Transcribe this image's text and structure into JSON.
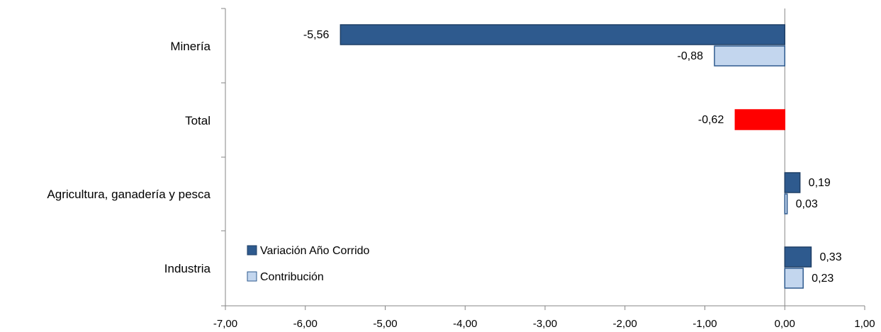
{
  "chart_data": {
    "type": "bar",
    "orientation": "horizontal",
    "categories": [
      "Minería",
      "Total",
      "Agricultura, ganadería y pesca",
      "Industria"
    ],
    "series": [
      {
        "name": "Variación Año Corrido",
        "values": [
          -5.56,
          null,
          0.19,
          0.33
        ],
        "labels": [
          "-5,56",
          "",
          "0,19",
          "0,33"
        ],
        "color": "#2E5A8E"
      },
      {
        "name": "Contribución",
        "values": [
          -0.88,
          null,
          0.03,
          0.23
        ],
        "labels": [
          "-0,88",
          "",
          "0,03",
          "0,23"
        ],
        "color": "#C3D6EE"
      }
    ],
    "total": {
      "value": -0.62,
      "label": "-0,62",
      "color": "#FF0000"
    },
    "xlim": [
      -7,
      1
    ],
    "xticks": [
      -7,
      -6,
      -5,
      -4,
      -3,
      -2,
      -1,
      0,
      1
    ],
    "xtick_labels": [
      "-7,00",
      "-6,00",
      "-5,00",
      "-4,00",
      "-3,00",
      "-2,00",
      "-1,00",
      "0,00",
      "1,00"
    ],
    "grid": false,
    "legend_position": "bottom-left"
  }
}
